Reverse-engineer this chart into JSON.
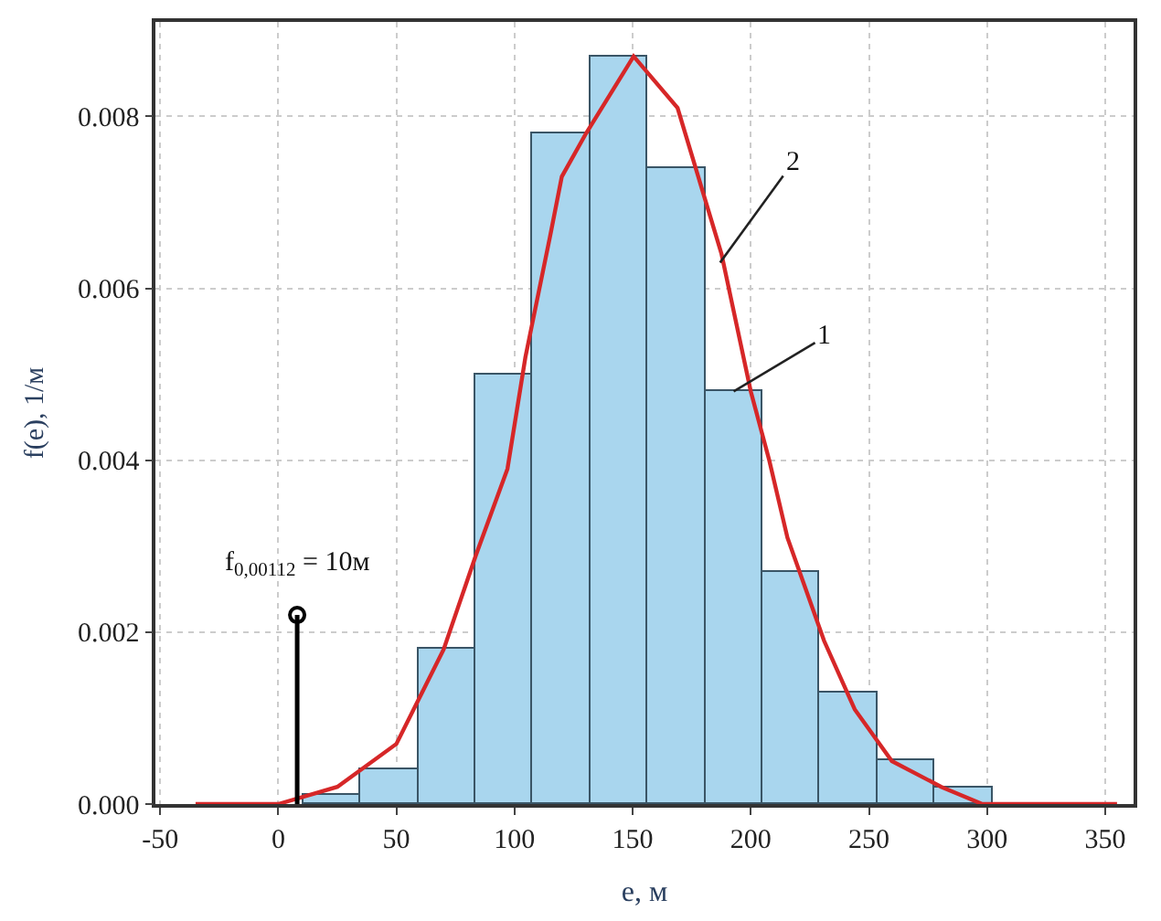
{
  "chart_data": {
    "type": "histogram",
    "xlabel": "e, м",
    "ylabel": "f(e), 1/м",
    "bins": [
      10.5,
      34.8,
      59.1,
      83.4,
      107.7,
      132.0,
      156.3,
      180.6,
      204.9,
      229.2,
      253.5,
      277.8,
      302.1
    ],
    "values": [
      0.0001,
      0.0004,
      0.0018,
      0.005,
      0.0078,
      0.0087,
      0.0074,
      0.0048,
      0.0027,
      0.0013,
      0.0005,
      0.0002
    ],
    "color": "#a9d6ee",
    "series": [
      {
        "type": "line",
        "color": "#d62728",
        "line_style": "solid",
        "x": [
          -35,
          0,
          25,
          50,
          70,
          83.7,
          97,
          104.6,
          115,
          120,
          130.2,
          150.4,
          169,
          187.6,
          200,
          207.8,
          215.5,
          231,
          244,
          259.7,
          280.6,
          298,
          330,
          355
        ],
        "values": [
          0.0,
          0.0,
          0.0002,
          0.0007,
          0.0018,
          0.0029,
          0.0039,
          0.0052,
          0.0066,
          0.0073,
          0.0078,
          0.0087,
          0.0081,
          0.0064,
          0.0048,
          0.004,
          0.0031,
          0.0019,
          0.0011,
          0.0005,
          0.0002,
          0.0,
          0.0,
          0.0
        ]
      },
      {
        "type": "lollipop",
        "color": "#000000",
        "marker": "circle",
        "x": [
          8
        ],
        "values": [
          0.0022
        ]
      }
    ],
    "annotations": [
      {
        "text": "f$_{0,00112}$ = 10м",
        "x": 8,
        "y": 0.0022
      },
      {
        "text": "2",
        "x": 187,
        "y": 0.0063
      },
      {
        "text": "1",
        "x": 192.75,
        "y": 0.0048
      }
    ],
    "xlim": [
      -52,
      362
    ],
    "ylim": [
      0,
      0.0091
    ],
    "xticks": [
      -50,
      0,
      50,
      100,
      150,
      200,
      250,
      300,
      350
    ],
    "yticks": [
      {
        "value": 0,
        "label": "0.000"
      },
      0.002,
      0.004,
      0.006,
      0.008
    ],
    "grid": true
  }
}
